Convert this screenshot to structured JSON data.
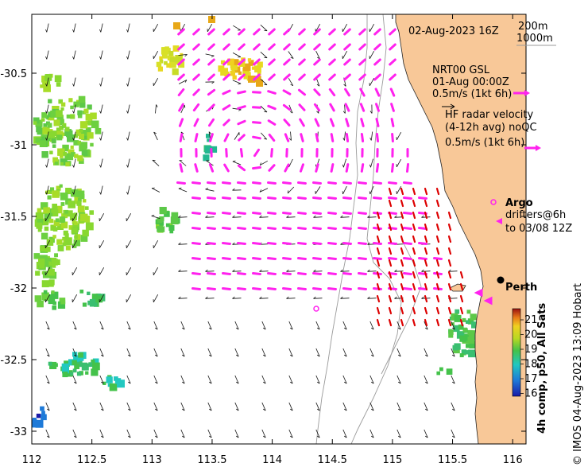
{
  "map": {
    "x_ticks": [
      "112",
      "112.5",
      "113",
      "113.5",
      "114",
      "114.5",
      "115",
      "115.5",
      "116"
    ],
    "y_ticks": [
      "-30.5",
      "-31",
      "-31.5",
      "-32",
      "-32.5",
      "-33"
    ],
    "lon_range": [
      112,
      116.1
    ],
    "lat_range": [
      -33.1,
      -30.1
    ]
  },
  "header": {
    "date": "02-Aug-2023 16Z",
    "depth_200": "200m",
    "depth_1000": "1000m"
  },
  "legend": {
    "nrt_title": "NRT00 GSL",
    "nrt_date": "01-Aug 00:00Z",
    "nrt_scale": "0.5m/s (1kt 6h)",
    "hf_line1": "HF radar velocity",
    "hf_line2": "(4-12h avg) noQC",
    "hf_scale": "0.5m/s (1kt 6h)",
    "argo_label": "Argo",
    "drifters_line1": "drifters@6h",
    "drifters_line2": "to 03/08 12Z",
    "city": "Perth"
  },
  "colorbar": {
    "ticks": [
      "21",
      "20",
      "19",
      "18",
      "17",
      "16"
    ],
    "title": "4h comp, p50, All Sats"
  },
  "credit": "© IMOS 04-Aug-2023 13:09 Hobart",
  "colors": {
    "land": "#f8c898",
    "hf_arrows": "#ff22ee",
    "drifter": "#ff22ee",
    "coast_margin": "#dd0000",
    "argo": "#ff22ee"
  }
}
